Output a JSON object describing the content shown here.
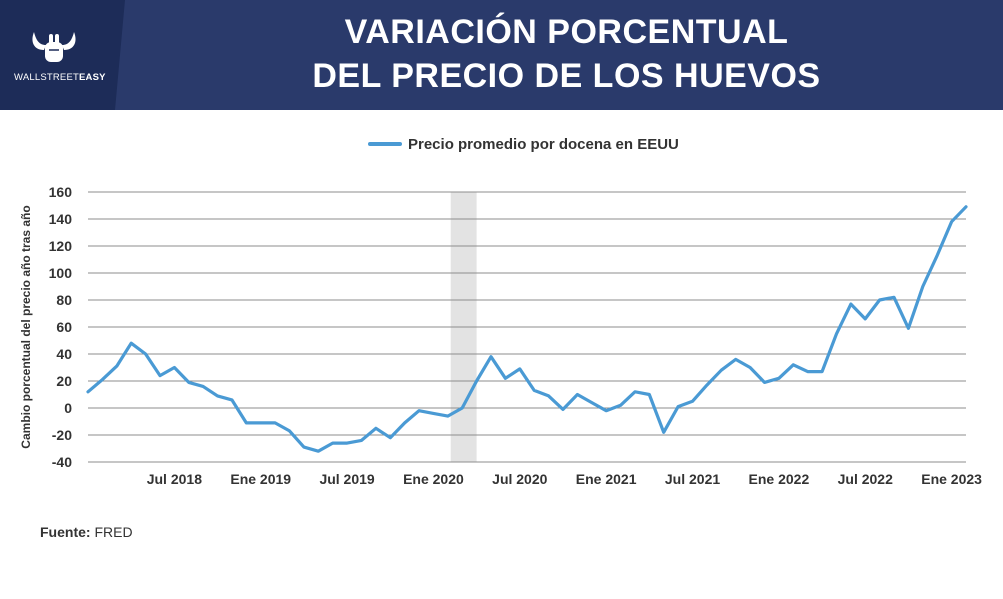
{
  "header": {
    "brand_light": "WALLSTREET",
    "brand_bold": "EASY",
    "title_line1": "VARIACIÓN PORCENTUAL",
    "title_line2": "DEL PRECIO DE LOS HUEVOS",
    "logo_icon": "bull-horns-hand-icon"
  },
  "colors": {
    "header_bg": "#2a3a6b",
    "line": "#4a9ad4",
    "shade": "#e3e3e3"
  },
  "source": {
    "label": "Fuente:",
    "value": "FRED"
  },
  "chart_data": {
    "type": "line",
    "title": "",
    "legend": "Precio promedio por docena en EEUU",
    "legend_position": "top-center",
    "ylabel": "Cambio porcentual del precio año tras año",
    "xlabel": "",
    "ylim": [
      -40,
      160
    ],
    "yticks": [
      -40,
      -20,
      0,
      20,
      40,
      60,
      80,
      100,
      120,
      140,
      160
    ],
    "grid": true,
    "xtick_labels": [
      "Jul 2018",
      "Ene 2019",
      "Jul 2019",
      "Ene 2020",
      "Jul 2020",
      "Ene 2021",
      "Jul 2021",
      "Ene 2022",
      "Jul 2022",
      "Ene 2023"
    ],
    "xtick_index": [
      6,
      12,
      18,
      24,
      30,
      36,
      42,
      48,
      54,
      60
    ],
    "shaded_region_index": [
      25.2,
      27.0
    ],
    "series": [
      {
        "name": "Precio promedio por docena en EEUU",
        "values": [
          12,
          21,
          31,
          48,
          40,
          24,
          30,
          19,
          16,
          9,
          6,
          -11,
          -11,
          -11,
          -17,
          -29,
          -32,
          -26,
          -26,
          -24,
          -15,
          -22,
          -11,
          -2,
          -4,
          -6,
          0,
          20,
          38,
          22,
          29,
          13,
          9,
          -1,
          10,
          4,
          -2,
          2,
          12,
          10,
          -18,
          1,
          5,
          17,
          28,
          36,
          30,
          19,
          22,
          32,
          27,
          27,
          55,
          77,
          66,
          80,
          82,
          59,
          90,
          113,
          138,
          149
        ]
      }
    ]
  }
}
